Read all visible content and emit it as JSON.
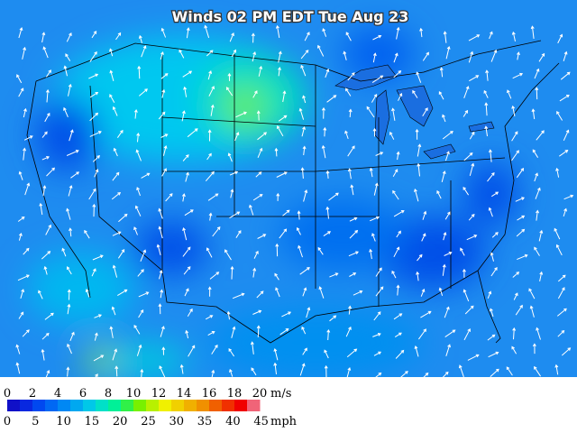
{
  "title": "Winds 02 PM EDT Tue Aug 23",
  "legend": {
    "colors": [
      "#1010c8",
      "#0828e0",
      "#0048f0",
      "#0068f4",
      "#0088f4",
      "#00a8f0",
      "#00c8e8",
      "#00e0c8",
      "#00f098",
      "#30f048",
      "#78f000",
      "#b8f000",
      "#f0f000",
      "#f0d000",
      "#f0b000",
      "#f09000",
      "#f06000",
      "#f03000",
      "#f00000",
      "#f06478"
    ],
    "ms_labels": [
      0,
      2,
      4,
      6,
      8,
      10,
      12,
      14,
      16,
      18,
      20
    ],
    "ms_unit": "m/s",
    "mph_labels": [
      0,
      5,
      10,
      15,
      20,
      25,
      30,
      35,
      40,
      45
    ],
    "mph_unit": "mph"
  }
}
